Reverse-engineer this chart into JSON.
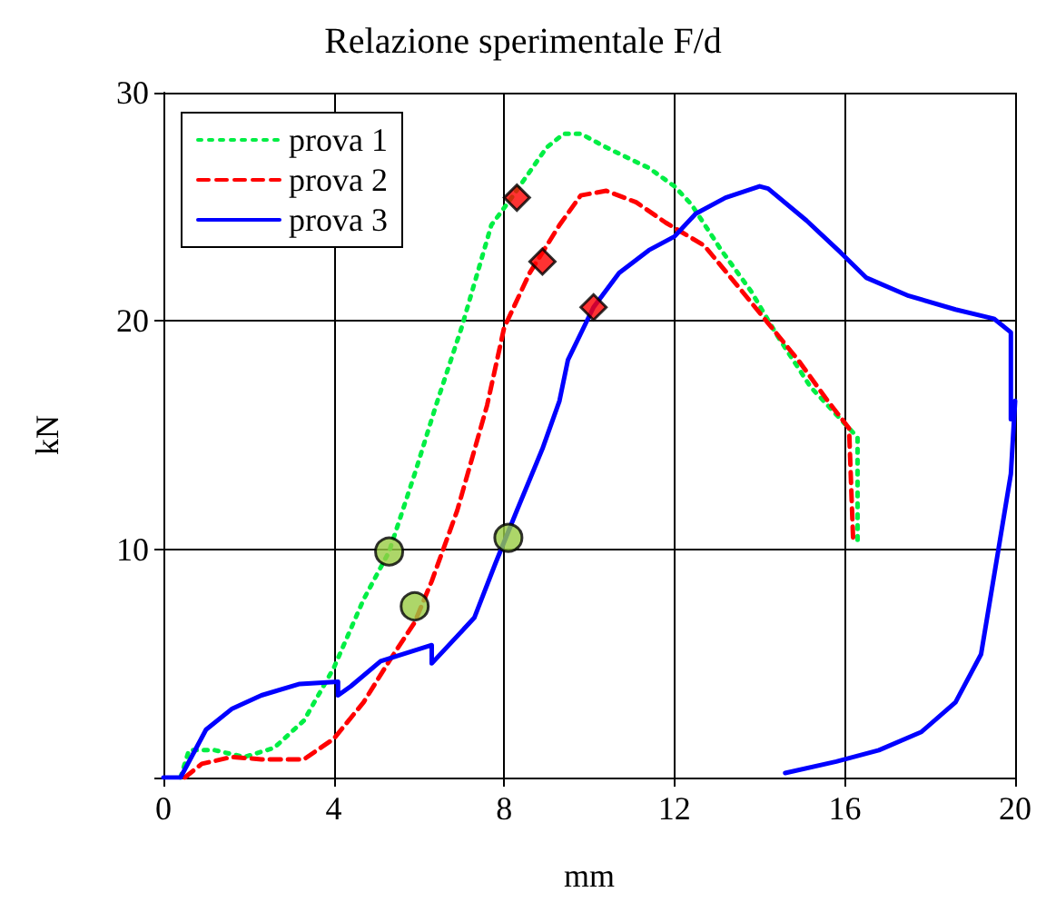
{
  "chart_data": {
    "type": "line",
    "title": "Relazione sperimentale F/d",
    "xlabel": "mm",
    "ylabel": "kN",
    "xlim": [
      0,
      20
    ],
    "xticks": [
      0,
      4,
      8,
      12,
      16,
      20
    ],
    "ylim": [
      0,
      30
    ],
    "yticks": [
      {
        "value": 0,
        "label": null
      },
      10,
      20,
      30
    ],
    "grid": true,
    "legend": "top left",
    "series": [
      {
        "name": "prova 1",
        "color": "#00ee44",
        "line_style": "dotted",
        "marker": "none",
        "x": [
          0.4,
          0.6,
          1.2,
          1.9,
          2.6,
          3.3,
          4.0,
          4.7,
          5.3,
          5.9,
          6.4,
          7.0,
          7.7,
          8.1,
          9.0,
          9.4,
          9.8,
          10.4,
          11.4,
          12.0,
          12.4,
          13.1,
          13.8,
          14.4,
          15.2,
          16.0,
          16.3,
          16.3
        ],
        "values": [
          0,
          1.2,
          1.2,
          0.9,
          1.3,
          2.5,
          4.8,
          7.8,
          9.9,
          13.3,
          16.3,
          19.7,
          24.2,
          25.2,
          27.6,
          28.2,
          28.2,
          27.6,
          26.7,
          25.9,
          25.1,
          23.1,
          21.3,
          19.4,
          17.1,
          15.5,
          14.9,
          10.3
        ]
      },
      {
        "name": "prova 2",
        "color": "#ff0000",
        "line_style": "dashed",
        "marker": "none",
        "x": [
          0.5,
          0.9,
          1.6,
          2.3,
          3.3,
          4.0,
          4.7,
          5.3,
          5.9,
          6.3,
          6.9,
          7.6,
          8.0,
          8.6,
          9.3,
          9.8,
          10.4,
          11.1,
          11.8,
          12.7,
          13.5,
          14.2,
          14.9,
          15.6,
          16.1,
          16.2
        ],
        "values": [
          0,
          0.6,
          0.9,
          0.8,
          0.8,
          1.7,
          3.3,
          5.1,
          6.8,
          8.6,
          11.7,
          16.3,
          19.7,
          22.1,
          24.2,
          25.5,
          25.7,
          25.2,
          24.3,
          23.3,
          21.5,
          19.9,
          18.3,
          16.5,
          15.3,
          10.2
        ]
      },
      {
        "name": "prova 3",
        "color": "#0000ff",
        "line_style": "solid",
        "marker": "none",
        "x": [
          -0.0,
          0.4,
          1.0,
          1.6,
          2.3,
          3.2,
          4.1,
          4.1,
          4.4,
          5.1,
          6.3,
          6.3,
          7.3,
          7.8,
          8.3,
          8.9,
          9.3,
          9.5,
          10.1,
          10.7,
          11.4,
          12.0,
          12.5,
          13.2,
          14.0,
          14.2,
          15.1,
          15.9,
          16.5,
          17.5,
          18.6,
          19.5,
          19.9,
          19.9,
          20.0,
          19.9,
          19.6,
          19.2,
          18.6,
          17.8,
          16.8,
          15.8,
          14.6
        ],
        "values": [
          0,
          0,
          2.1,
          3.0,
          3.6,
          4.1,
          4.2,
          3.6,
          4.0,
          5.1,
          5.8,
          5.0,
          7.0,
          9.4,
          11.7,
          14.4,
          16.5,
          18.3,
          20.6,
          22.1,
          23.1,
          23.7,
          24.7,
          25.4,
          25.9,
          25.8,
          24.4,
          23.0,
          21.9,
          21.1,
          20.5,
          20.1,
          19.5,
          15.7,
          16.5,
          13.3,
          9.9,
          5.4,
          3.3,
          2.0,
          1.2,
          0.7,
          0.2
        ]
      },
      {
        "type": "scatter",
        "color": "#ff0000",
        "marker": "diamond",
        "x": [
          8.3,
          8.9,
          10.1
        ],
        "values": [
          25.4,
          22.6,
          20.6
        ]
      },
      {
        "type": "scatter",
        "color": "#99cc44",
        "marker": "circle",
        "x": [
          5.3,
          5.9,
          8.1
        ],
        "values": [
          9.9,
          7.5,
          10.5
        ]
      }
    ]
  }
}
